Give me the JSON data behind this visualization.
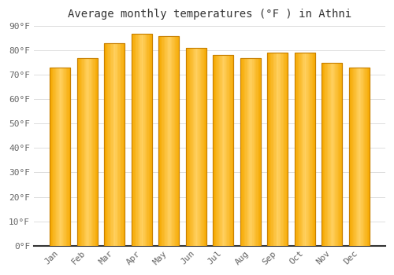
{
  "months": [
    "Jan",
    "Feb",
    "Mar",
    "Apr",
    "May",
    "Jun",
    "Jul",
    "Aug",
    "Sep",
    "Oct",
    "Nov",
    "Dec"
  ],
  "values": [
    73,
    77,
    83,
    87,
    86,
    81,
    78,
    77,
    79,
    79,
    75,
    73
  ],
  "bar_color_left": "#F5A800",
  "bar_color_mid": "#FFD060",
  "bar_color_right": "#F5A800",
  "bar_edge_color": "#C88000",
  "title": "Average monthly temperatures (°F ) in Athni",
  "ylim": [
    0,
    90
  ],
  "yticks": [
    0,
    10,
    20,
    30,
    40,
    50,
    60,
    70,
    80,
    90
  ],
  "ytick_labels": [
    "0°F",
    "10°F",
    "20°F",
    "30°F",
    "40°F",
    "50°F",
    "60°F",
    "70°F",
    "80°F",
    "90°F"
  ],
  "background_color": "#ffffff",
  "grid_color": "#dddddd",
  "title_fontsize": 10,
  "tick_fontsize": 8,
  "bar_width": 0.75
}
